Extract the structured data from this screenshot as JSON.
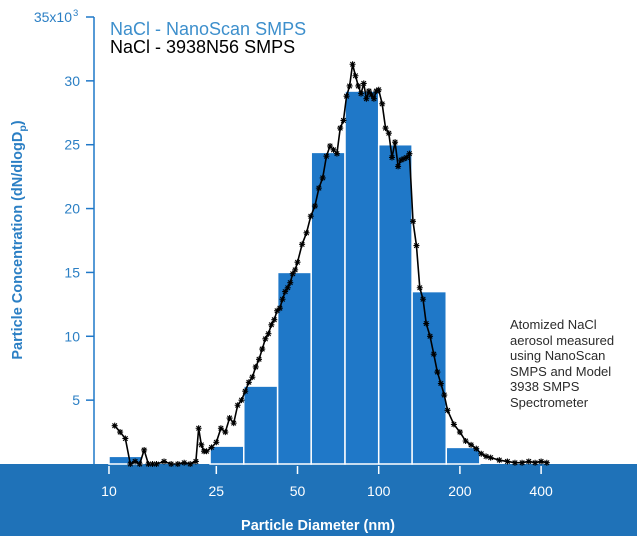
{
  "chart_data": {
    "type": "bar",
    "title": "",
    "xlabel": "Particle Diameter (nm)",
    "ylabel": "Particle Concentration (dN/dlogDp)",
    "ylabel_main": "Particle Concentration (dN/dlogD",
    "ylabel_sub": "p",
    "ylabel_close": ")",
    "x_scale": "log",
    "xlim": [
      8.8,
      470
    ],
    "ylim": [
      0,
      35000
    ],
    "grid": false,
    "legend_position": "top-left",
    "x_ticks": [
      10,
      25,
      50,
      100,
      200,
      400
    ],
    "x_tick_labels": [
      "10",
      "25",
      "50",
      "100",
      "200",
      "400"
    ],
    "y_ticks": [
      5000,
      10000,
      15000,
      20000,
      25000,
      30000,
      35000
    ],
    "y_tick_labels": [
      "5",
      "10",
      "15",
      "20",
      "25",
      "30",
      "35x10"
    ],
    "y_top_exponent": "3",
    "series": [
      {
        "name": "NaCl - NanoScan SMPS",
        "type": "bar",
        "color": "#1f78c8",
        "bins": [
          {
            "lo": 10,
            "hi": 13.3,
            "value": 600
          },
          {
            "lo": 23.7,
            "hi": 31.6,
            "value": 1400
          },
          {
            "lo": 31.6,
            "hi": 42.2,
            "value": 6100
          },
          {
            "lo": 42.2,
            "hi": 56.2,
            "value": 15000
          },
          {
            "lo": 56.2,
            "hi": 75,
            "value": 24400
          },
          {
            "lo": 75,
            "hi": 100,
            "value": 29200
          },
          {
            "lo": 100,
            "hi": 133,
            "value": 25000
          },
          {
            "lo": 133,
            "hi": 178,
            "value": 13500
          },
          {
            "lo": 178,
            "hi": 237,
            "value": 1300
          }
        ]
      },
      {
        "name": "NaCl - 3938N56 SMPS",
        "type": "line",
        "color": "#000000",
        "x": [
          10.5,
          11,
          11.5,
          12,
          12.5,
          13,
          13.5,
          14,
          14.5,
          15,
          16,
          17,
          18,
          19,
          20,
          21,
          21.5,
          22,
          22.5,
          23,
          24,
          25,
          26,
          27,
          28,
          29,
          30,
          31,
          32,
          33,
          34,
          35,
          36,
          37,
          38,
          39,
          40,
          41,
          42,
          43,
          44,
          45,
          46,
          47,
          48,
          49,
          50,
          52,
          54,
          56,
          58,
          60,
          62,
          64,
          66,
          68,
          70,
          72,
          74,
          76,
          78,
          80,
          82,
          84,
          86,
          88,
          90,
          92,
          94,
          96,
          98,
          100,
          103,
          106,
          109,
          112,
          115,
          118,
          121,
          124,
          127,
          130,
          134,
          138,
          142,
          146,
          150,
          155,
          160,
          165,
          170,
          175,
          180,
          190,
          200,
          210,
          220,
          230,
          240,
          250,
          260,
          280,
          300,
          320,
          340,
          360,
          380,
          400,
          420
        ],
        "y": [
          3000,
          2500,
          2000,
          0,
          200,
          0,
          1100,
          0,
          0,
          0,
          200,
          0,
          0,
          100,
          0,
          200,
          2800,
          1500,
          1000,
          1000,
          1300,
          1700,
          2800,
          2500,
          3600,
          3200,
          4600,
          5000,
          5700,
          6400,
          6800,
          7600,
          8200,
          9000,
          9800,
          10200,
          10900,
          11300,
          12000,
          12200,
          12900,
          13500,
          13800,
          14200,
          14900,
          15200,
          15800,
          17200,
          18100,
          19400,
          20200,
          21600,
          22400,
          24100,
          24900,
          24600,
          24300,
          26300,
          26900,
          28800,
          29600,
          31300,
          30400,
          29600,
          29000,
          29800,
          28600,
          29200,
          28900,
          28600,
          29200,
          29300,
          28200,
          26300,
          25900,
          24000,
          25200,
          23300,
          23800,
          23900,
          24000,
          24300,
          19000,
          17100,
          13800,
          12900,
          11000,
          10000,
          8600,
          7200,
          6300,
          5400,
          4200,
          3100,
          2500,
          1800,
          1500,
          1200,
          800,
          600,
          500,
          300,
          200,
          100,
          100,
          200,
          100,
          200,
          100
        ]
      }
    ],
    "annotation": [
      "Atomized NaCl",
      "aerosol measured",
      "using NanoScan",
      "SMPS and Model",
      "3938 SMPS",
      "Spectrometer"
    ]
  }
}
